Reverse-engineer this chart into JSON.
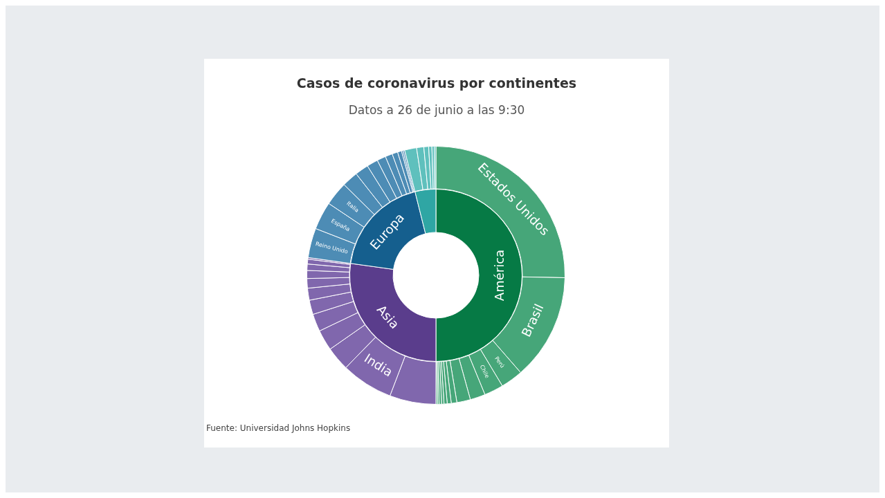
{
  "chart_data": [
    {
      "type": "donut",
      "title": "Casos de coronavirus por continentes",
      "subtitle": "Datos a 26 de junio a las 9:30",
      "annotations": [
        "Fuente: Universidad Johns Hopkins"
      ],
      "categories": [
        "América",
        "Asia",
        "Europa",
        null
      ],
      "values": [
        50,
        27.2,
        18.9,
        3.9
      ],
      "colors": [
        "#067a45",
        "#5a3d8c",
        "#155f8e",
        "#2fa6a4"
      ]
    },
    {
      "type": "donut",
      "categories": [
        "Estados Unidos",
        "Brasil",
        "Perú",
        "Chile",
        null,
        null,
        null,
        null,
        null,
        null,
        null,
        null,
        null,
        null,
        "India",
        null,
        null,
        null,
        null,
        null,
        null,
        null,
        null,
        null,
        null,
        "Reino Unido",
        "España",
        "Italia",
        null,
        null,
        null,
        null,
        null,
        null,
        null,
        null,
        null,
        null,
        null,
        null,
        null,
        null,
        null
      ],
      "values": [
        25.3,
        13.3,
        2.8,
        2.4,
        1.9,
        1.7,
        0.7,
        0.5,
        0.4,
        0.3,
        0.3,
        0.2,
        0.2,
        5.8,
        6.5,
        3.0,
        2.6,
        2.2,
        1.8,
        1.5,
        1.2,
        1.0,
        0.8,
        0.6,
        0.2,
        3.7,
        3.5,
        3.0,
        2.0,
        1.7,
        1.4,
        1.1,
        0.9,
        0.7,
        0.5,
        0.2,
        0.2,
        1.5,
        0.9,
        0.6,
        0.4,
        0.3,
        0.2
      ],
      "colors": [
        "#46a679",
        "#46a679",
        "#46a679",
        "#46a679",
        "#46a679",
        "#46a679",
        "#46a679",
        "#46a679",
        "#46a679",
        "#46a679",
        "#46a679",
        "#46a679",
        "#46a679",
        "#8067ad",
        "#8067ad",
        "#8067ad",
        "#8067ad",
        "#8067ad",
        "#8067ad",
        "#8067ad",
        "#8067ad",
        "#8067ad",
        "#8067ad",
        "#8067ad",
        "#8067ad",
        "#4d8cb5",
        "#4d8cb5",
        "#4d8cb5",
        "#4d8cb5",
        "#4d8cb5",
        "#4d8cb5",
        "#4d8cb5",
        "#4d8cb5",
        "#4d8cb5",
        "#4d8cb5",
        "#4d8cb5",
        "#4d8cb5",
        "#5fc0bd",
        "#5fc0bd",
        "#5fc0bd",
        "#5fc0bd",
        "#5fc0bd",
        "#5fc0bd"
      ]
    }
  ]
}
